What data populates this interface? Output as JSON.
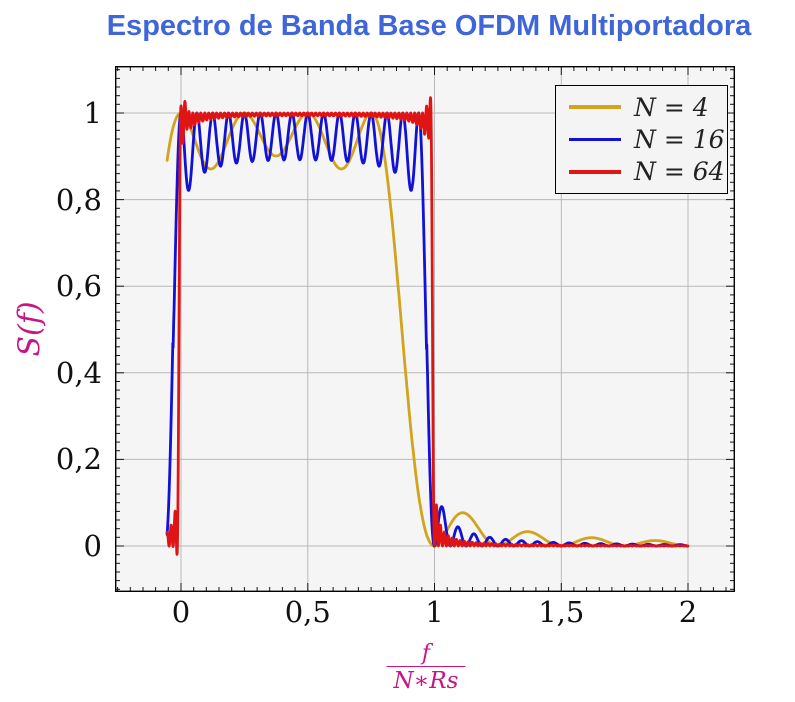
{
  "title": {
    "text": "Espectro de Banda Base OFDM Multiportadora"
  },
  "axes": {
    "x": {
      "label_numerator": "f",
      "label_denominator": "N∗Rs",
      "tick_values": [
        0,
        0.5,
        1,
        1.5,
        2
      ],
      "tick_labels": [
        "0",
        "0,5",
        "1",
        "1,5",
        "2"
      ],
      "minor_step": 0.05,
      "minor_range": [
        -0.25,
        2.15
      ]
    },
    "y": {
      "label": "S(f)",
      "tick_values": [
        0,
        0.2,
        0.4,
        0.6,
        0.8,
        1
      ],
      "tick_labels": [
        "0",
        "0,2",
        "0,4",
        "0,6",
        "0,8",
        "1"
      ],
      "minor_step": 0.02,
      "minor_range": [
        -0.1,
        1.1
      ]
    }
  },
  "legend": {
    "entries": [
      {
        "label": "N = 4",
        "color": "#D2A41E"
      },
      {
        "label": "N = 16",
        "color": "#1212D6"
      },
      {
        "label": "N = 64",
        "color": "#E11414"
      }
    ]
  },
  "colors": {
    "page_bg": "#ffffff",
    "plot_bg": "#f5f5f5",
    "grid": "#b9b9b9",
    "border": "#000000",
    "tick": "#161616",
    "tick_label": "#111111",
    "title": "#3E66D9",
    "axis_label": "#C71585",
    "legend_bg": "#f4f4f4",
    "legend_border": "#000000",
    "legend_text": "#222222"
  },
  "chart_data": {
    "type": "line",
    "title": "Espectro de Banda Base OFDM Multiportadora",
    "xlabel": "f/(N*Rs)",
    "ylabel": "S(f)",
    "xlim": [
      -0.26,
      2.185
    ],
    "ylim": [
      -0.106,
      1.108
    ],
    "grid": true,
    "legend_position": "top-right",
    "model": "S(x) = sum_{k=0}^{N-1} sinc^2(N*x - k), x = f/(N*Rs). Plateau ~1 for 0<=x<=(N-1)/N with per-subcarrier ripple (dips ~0.87 for N=4, ~0.90 for N=16, ~0.98 for N=64), sharp cutoff near x=1 (Gibbs overshoot to ~1.04 for N=64), decaying sinc^2 sidelobes for 1<x<2 (first lobe ~0.07 for N=4 at x~1.12, ~0.07 for N=16 at x~1.03, ~0.03 for N=64 at x~1.01)",
    "x_samples_range": [
      -0.055,
      2.0
    ],
    "series": [
      {
        "name": "N = 4",
        "N": 4,
        "color": "#D2A41E",
        "ripple": 0,
        "overshoot": 0,
        "x_start": -0.055,
        "x_end": 2.0,
        "step": 0.002
      },
      {
        "name": "N = 16",
        "N": 16,
        "color": "#1212D6",
        "ripple": 0.085,
        "overshoot": 0,
        "x_start": -0.055,
        "x_end": 2.0,
        "step": 0.0012
      },
      {
        "name": "N = 64",
        "N": 64,
        "color": "#E11414",
        "ripple": 0,
        "overshoot": 0.03,
        "x_start": -0.055,
        "x_end": 2.0,
        "step": 0.0008
      }
    ],
    "line_width": 2.8
  }
}
